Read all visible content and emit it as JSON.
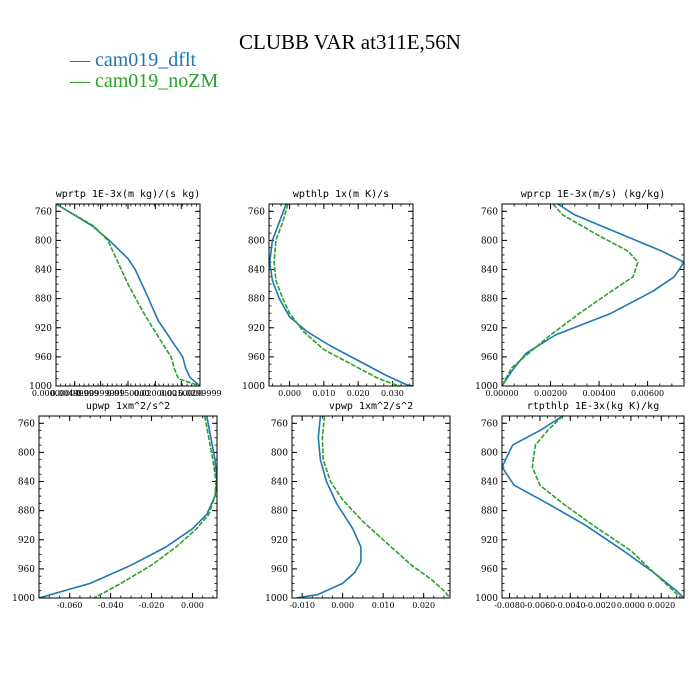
{
  "figure": {
    "title": "CLUBB VAR at311E,56N"
  },
  "legend": {
    "items": [
      {
        "label": "cam019_dflt",
        "color": "#1f77b4"
      },
      {
        "label": "cam019_noZM",
        "color": "#2ca02c"
      }
    ]
  },
  "chart_data": [
    {
      "type": "line",
      "title": "wprtp  1E-3x(m kg)/(s kg)",
      "ylim": [
        1000,
        750
      ],
      "y_ticks": [
        760,
        800,
        840,
        880,
        920,
        960,
        1000
      ],
      "xlim": [
        0,
        1
      ],
      "x_tick_labels": [
        "0.00000000",
        "0.00499999",
        "0.00999999",
        "0.0150000",
        "0.0200000",
        "0.0250000",
        "0.0299999"
      ],
      "x_tick_values": [
        0.0,
        0.13,
        0.31,
        0.5,
        0.69,
        0.87,
        1.0
      ],
      "series": [
        {
          "name": "cam019_dflt",
          "x": [
            0.0,
            0.25,
            0.37,
            0.5,
            0.55,
            0.62,
            0.71,
            0.88,
            0.9,
            0.93,
            1.0
          ],
          "y": [
            750,
            780,
            800,
            825,
            840,
            870,
            910,
            960,
            975,
            988,
            1000
          ]
        },
        {
          "name": "cam019_noZM",
          "x": [
            0.0,
            0.26,
            0.36,
            0.43,
            0.5,
            0.61,
            0.75,
            0.8,
            0.82,
            0.85,
            1.0
          ],
          "y": [
            750,
            780,
            800,
            830,
            860,
            900,
            945,
            960,
            975,
            990,
            1000
          ]
        }
      ]
    },
    {
      "type": "line",
      "title": "wpthlp  1x(m K)/s",
      "ylim": [
        1000,
        750
      ],
      "y_ticks": [
        760,
        800,
        840,
        880,
        920,
        960,
        1000
      ],
      "xlim": [
        -0.006,
        0.036
      ],
      "x_tick_labels": [
        "0.000",
        "0.010",
        "0.020",
        "0.030"
      ],
      "x_tick_values": [
        0.0,
        0.01,
        0.02,
        0.03
      ],
      "series": [
        {
          "name": "cam019_dflt",
          "x": [
            -0.001,
            -0.003,
            -0.005,
            -0.0058,
            -0.005,
            -0.003,
            0.0,
            0.005,
            0.012,
            0.02,
            0.028,
            0.034,
            0.036
          ],
          "y": [
            750,
            775,
            800,
            830,
            855,
            880,
            905,
            925,
            945,
            965,
            985,
            998,
            1000
          ]
        },
        {
          "name": "cam019_noZM",
          "x": [
            -0.0005,
            -0.002,
            -0.004,
            -0.0045,
            -0.004,
            -0.002,
            0.0,
            0.004,
            0.01,
            0.018,
            0.026,
            0.032
          ],
          "y": [
            750,
            775,
            800,
            830,
            855,
            880,
            900,
            925,
            950,
            970,
            990,
            1000
          ]
        }
      ]
    },
    {
      "type": "line",
      "title": "wprcp  1E-3x(m/s) (kg/kg)",
      "ylim": [
        1000,
        750
      ],
      "y_ticks": [
        760,
        800,
        840,
        880,
        920,
        960,
        1000
      ],
      "xlim": [
        0,
        0.0075
      ],
      "x_tick_labels": [
        "0.00000",
        "0.00200",
        "0.00400",
        "0.00600"
      ],
      "x_tick_values": [
        0.0,
        0.002,
        0.004,
        0.006
      ],
      "series": [
        {
          "name": "cam019_dflt",
          "x": [
            0.0023,
            0.003,
            0.0048,
            0.0066,
            0.0075,
            0.0071,
            0.0062,
            0.0045,
            0.0022,
            0.001,
            0.0005,
            0.0
          ],
          "y": [
            750,
            765,
            790,
            815,
            830,
            850,
            870,
            900,
            930,
            955,
            975,
            1000
          ]
        },
        {
          "name": "cam019_noZM",
          "x": [
            0.0021,
            0.0025,
            0.0038,
            0.0052,
            0.0056,
            0.0054,
            0.0045,
            0.0032,
            0.002,
            0.0011,
            0.0004,
            0.0
          ],
          "y": [
            750,
            765,
            790,
            815,
            830,
            850,
            870,
            900,
            930,
            955,
            975,
            1000
          ]
        }
      ]
    },
    {
      "type": "line",
      "title": "upwp  1xm^2/s^2",
      "ylim": [
        1000,
        750
      ],
      "y_ticks": [
        760,
        800,
        840,
        880,
        920,
        960,
        1000
      ],
      "xlim": [
        -0.075,
        0.012
      ],
      "x_tick_labels": [
        "-0.060",
        "-0.040",
        "-0.020",
        "0.000"
      ],
      "x_tick_values": [
        -0.06,
        -0.04,
        -0.02,
        0.0
      ],
      "series": [
        {
          "name": "cam019_dflt",
          "x": [
            0.007,
            0.009,
            0.011,
            0.012,
            0.011,
            0.007,
            0.0,
            -0.013,
            -0.03,
            -0.05,
            -0.075
          ],
          "y": [
            750,
            780,
            810,
            840,
            860,
            885,
            905,
            930,
            955,
            980,
            1000
          ]
        },
        {
          "name": "cam019_noZM",
          "x": [
            0.006,
            0.008,
            0.01,
            0.0115,
            0.011,
            0.008,
            0.002,
            -0.008,
            -0.02,
            -0.035,
            -0.048
          ],
          "y": [
            750,
            780,
            810,
            840,
            860,
            885,
            905,
            930,
            955,
            980,
            1000
          ]
        }
      ]
    },
    {
      "type": "line",
      "title": "vpwp  1xm^2/s^2",
      "ylim": [
        1000,
        750
      ],
      "y_ticks": [
        760,
        800,
        840,
        880,
        920,
        960,
        1000
      ],
      "xlim": [
        -0.0125,
        0.0265
      ],
      "x_tick_labels": [
        "-0.010",
        "0.000",
        "0.010",
        "0.020"
      ],
      "x_tick_values": [
        -0.01,
        0.0,
        0.01,
        0.02
      ],
      "series": [
        {
          "name": "cam019_dflt",
          "x": [
            -0.0055,
            -0.006,
            -0.0055,
            -0.004,
            -0.0015,
            0.0025,
            0.0045,
            0.0045,
            0.003,
            0.0,
            -0.006,
            -0.0115
          ],
          "y": [
            750,
            780,
            810,
            840,
            870,
            905,
            930,
            950,
            965,
            980,
            995,
            1000
          ]
        },
        {
          "name": "cam019_noZM",
          "x": [
            -0.0045,
            -0.005,
            -0.0048,
            -0.003,
            0.0,
            0.005,
            0.011,
            0.017,
            0.022,
            0.025,
            0.0265
          ],
          "y": [
            750,
            780,
            810,
            840,
            865,
            895,
            925,
            955,
            975,
            990,
            1000
          ]
        }
      ]
    },
    {
      "type": "line",
      "title": "rtpthlp  1E-3x(kg K)/kg",
      "ylim": [
        1000,
        750
      ],
      "y_ticks": [
        760,
        800,
        840,
        880,
        920,
        960,
        1000
      ],
      "xlim": [
        -0.0085,
        0.0035
      ],
      "x_tick_labels": [
        "-0.0080",
        "-0.0060",
        "-0.0040",
        "-0.0020",
        "0.0000",
        "0.0020"
      ],
      "x_tick_values": [
        -0.008,
        -0.006,
        -0.004,
        -0.002,
        0.0,
        0.002
      ],
      "series": [
        {
          "name": "cam019_dflt",
          "x": [
            -0.0045,
            -0.006,
            -0.0078,
            -0.0085,
            -0.0077,
            -0.0055,
            -0.003,
            -0.0005,
            0.0015,
            0.003,
            0.0035
          ],
          "y": [
            750,
            770,
            790,
            820,
            845,
            870,
            900,
            935,
            965,
            990,
            1000
          ]
        },
        {
          "name": "cam019_noZM",
          "x": [
            -0.0045,
            -0.0055,
            -0.0063,
            -0.0065,
            -0.006,
            -0.0045,
            -0.0025,
            0.0,
            0.0015,
            0.0028,
            0.0033
          ],
          "y": [
            750,
            770,
            790,
            820,
            845,
            870,
            900,
            935,
            965,
            990,
            1000
          ]
        }
      ]
    }
  ]
}
